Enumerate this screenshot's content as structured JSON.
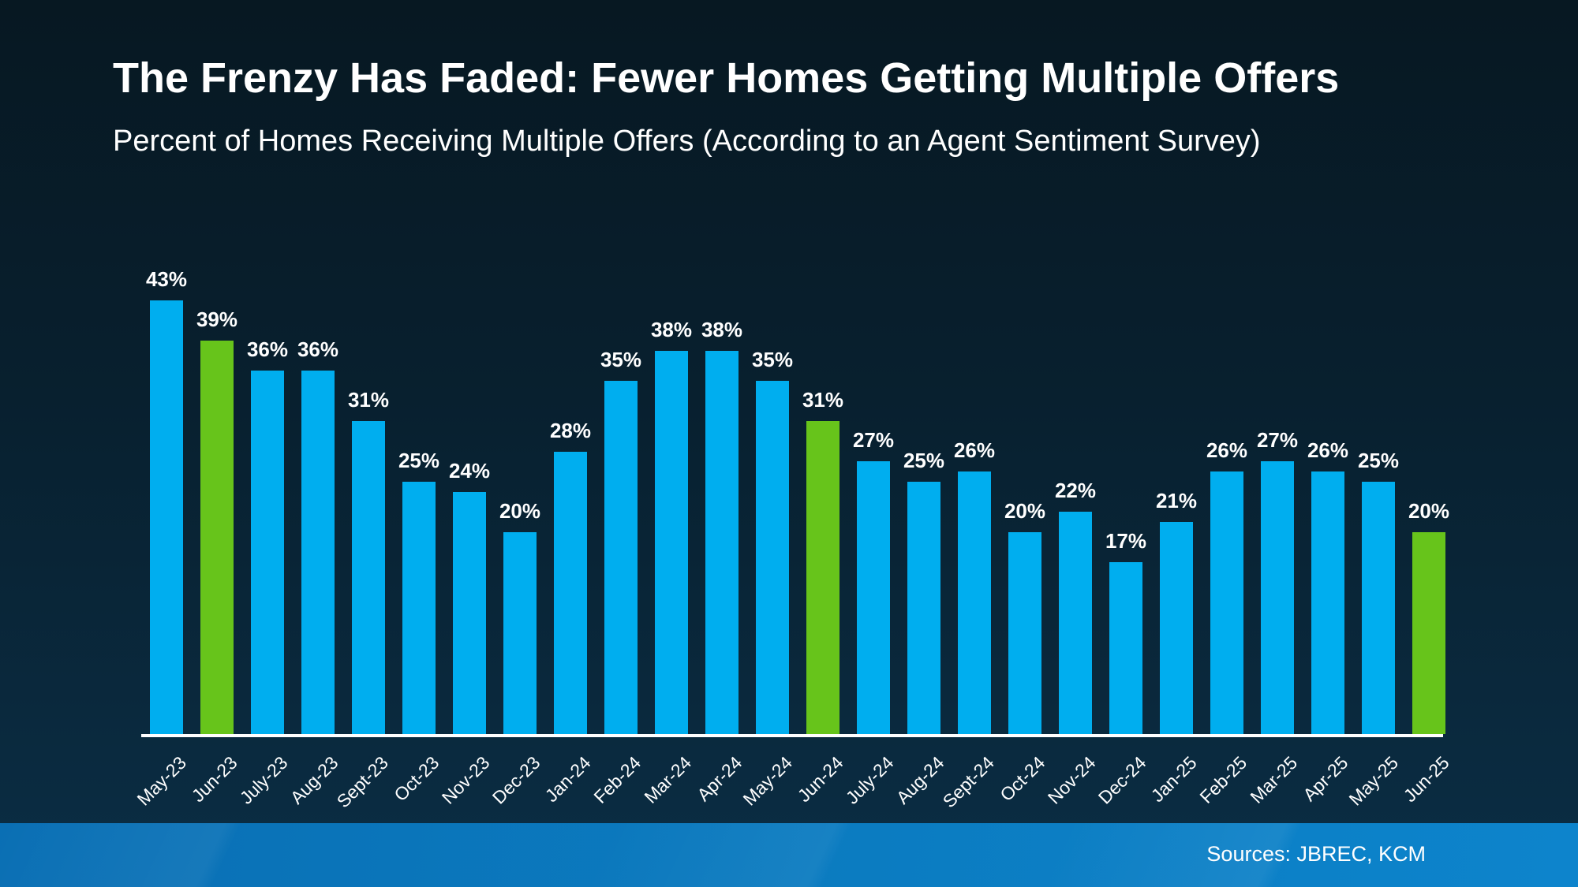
{
  "header": {
    "title": "The Frenzy Has Faded: Fewer Homes Getting Multiple Offers",
    "subtitle": "Percent of Homes Receiving Multiple Offers (According to an Agent Sentiment Survey)"
  },
  "footer": {
    "sources_label": "Sources: JBREC, KCM"
  },
  "colors": {
    "background_top": "#071822",
    "background_bottom": "#0b2d44",
    "bar_blue": "#00aeef",
    "bar_green_highlight": "#67c41b",
    "axis_line": "#ffffff",
    "text": "#ffffff",
    "footer_strip_blue": "#0b7cc1"
  },
  "chart_data": {
    "type": "bar",
    "title": "The Frenzy Has Faded: Fewer Homes Getting Multiple Offers",
    "subtitle": "Percent of Homes Receiving Multiple Offers (According to an Agent Sentiment Survey)",
    "categories": [
      "May-23",
      "Jun-23",
      "July-23",
      "Aug-23",
      "Sept-23",
      "Oct-23",
      "Nov-23",
      "Dec-23",
      "Jan-24",
      "Feb-24",
      "Mar-24",
      "Apr-24",
      "May-24",
      "Jun-24",
      "July-24",
      "Aug-24",
      "Sept-24",
      "Oct-24",
      "Nov-24",
      "Dec-24",
      "Jan-25",
      "Feb-25",
      "Mar-25",
      "Apr-25",
      "May-25",
      "Jun-25"
    ],
    "values": [
      43,
      39,
      36,
      36,
      31,
      25,
      24,
      20,
      28,
      35,
      38,
      38,
      35,
      31,
      27,
      25,
      26,
      20,
      22,
      17,
      21,
      26,
      27,
      26,
      25,
      20
    ],
    "value_suffix": "%",
    "series_color": "#00aeef",
    "highlight_indices": [
      1,
      13,
      25
    ],
    "highlight_color": "#67c41b",
    "ylim": [
      0,
      45
    ],
    "grid": false,
    "legend_position": "none",
    "xlabel": "",
    "ylabel": "",
    "x_tick_rotation": -45,
    "data_labels": "above-bars"
  }
}
